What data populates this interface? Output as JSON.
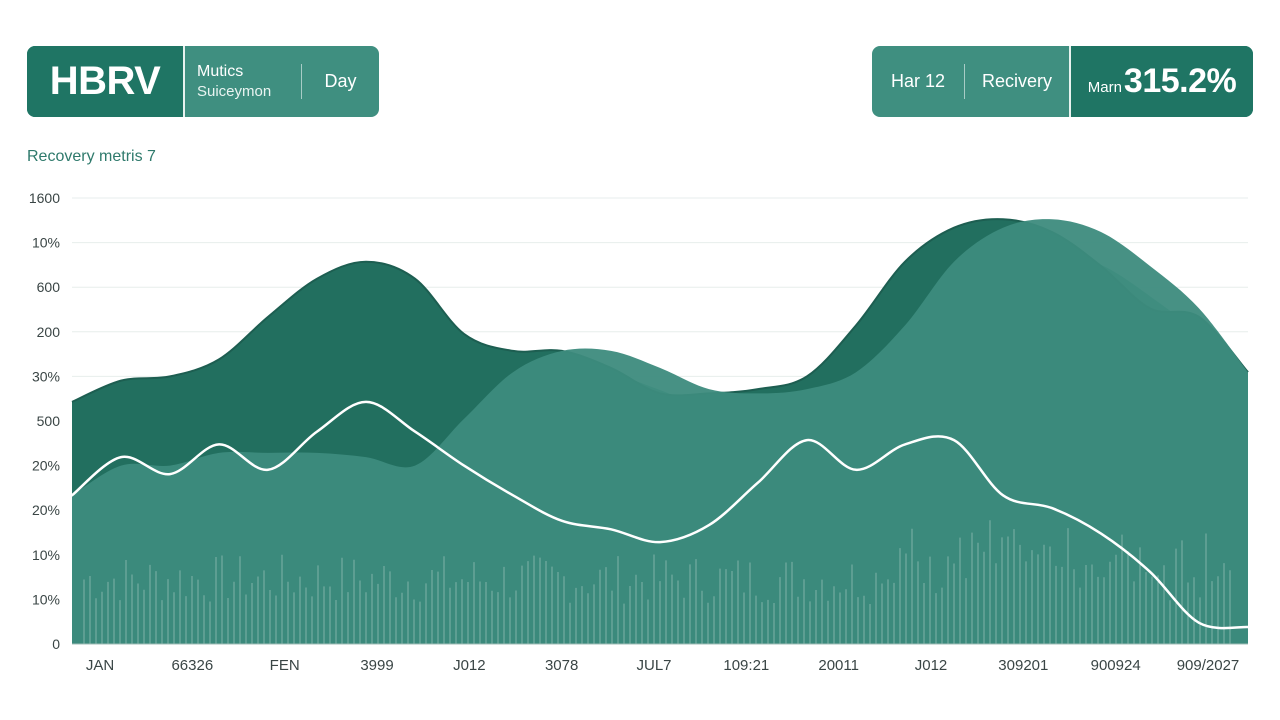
{
  "header_left": {
    "brand": "HBRV",
    "subtitle_top": "Mutics",
    "subtitle_bottom": "Suiceymon",
    "period": "Day"
  },
  "header_right": {
    "item1": "Har 12",
    "item2": "Recivery",
    "value_prefix": "Marn",
    "value_main": "315.2%"
  },
  "chart_subtitle": "Recovery metris 7",
  "colors": {
    "dark_area": "#226f5f",
    "light_area": "#3d8b7d",
    "back_area": "#4e9a8d",
    "line": "#ffffff",
    "accent": "#1f7564"
  },
  "chart_data": {
    "type": "area",
    "ytick_labels": [
      "1600",
      "10%",
      "600",
      "200",
      "30%",
      "500",
      "20%",
      "20%",
      "10%",
      "10%",
      "0"
    ],
    "xtick_labels": [
      "JAN",
      "66326",
      "FEN",
      "3999",
      "J012",
      "3078",
      "JUL7",
      "109:21",
      "20011",
      "J012",
      "309201",
      "900924",
      "909/2027"
    ],
    "x": [
      0,
      0.5,
      1,
      1.5,
      2,
      2.5,
      3,
      3.5,
      4,
      4.5,
      5,
      5.5,
      6,
      6.5,
      7,
      7.5,
      8,
      8.5,
      9,
      9.5,
      10,
      10.5,
      11,
      11.5,
      12
    ],
    "series": [
      {
        "values": [
          5.7,
          6.2,
          6.3,
          6.7,
          7.7,
          8.6,
          9.0,
          8.6,
          7.3,
          6.9,
          6.9,
          6.5,
          5.9,
          5.9,
          6.0,
          6.3,
          7.5,
          9.0,
          9.8,
          10.0,
          9.7,
          8.9,
          7.9,
          7.7,
          6.4
        ]
      },
      {
        "values": [
          3.5,
          4.2,
          4.2,
          4.5,
          4.5,
          4.5,
          4.4,
          4.2,
          5.3,
          6.4,
          6.9,
          6.9,
          6.5,
          6.0,
          5.9,
          6.0,
          6.4,
          7.5,
          9.0,
          9.8,
          10.0,
          9.7,
          8.9,
          7.9,
          6.4
        ]
      },
      {
        "values": [
          3.5,
          4.4,
          4.0,
          4.7,
          4.1,
          5.0,
          5.7,
          5.0,
          4.2,
          3.5,
          2.9,
          2.7,
          2.4,
          2.8,
          3.8,
          4.8,
          4.1,
          4.7,
          4.8,
          3.5,
          3.2,
          2.6,
          1.7,
          0.5,
          0.4
        ]
      }
    ],
    "ylim": [
      0,
      10.5
    ],
    "grid": true,
    "legend": "none"
  }
}
